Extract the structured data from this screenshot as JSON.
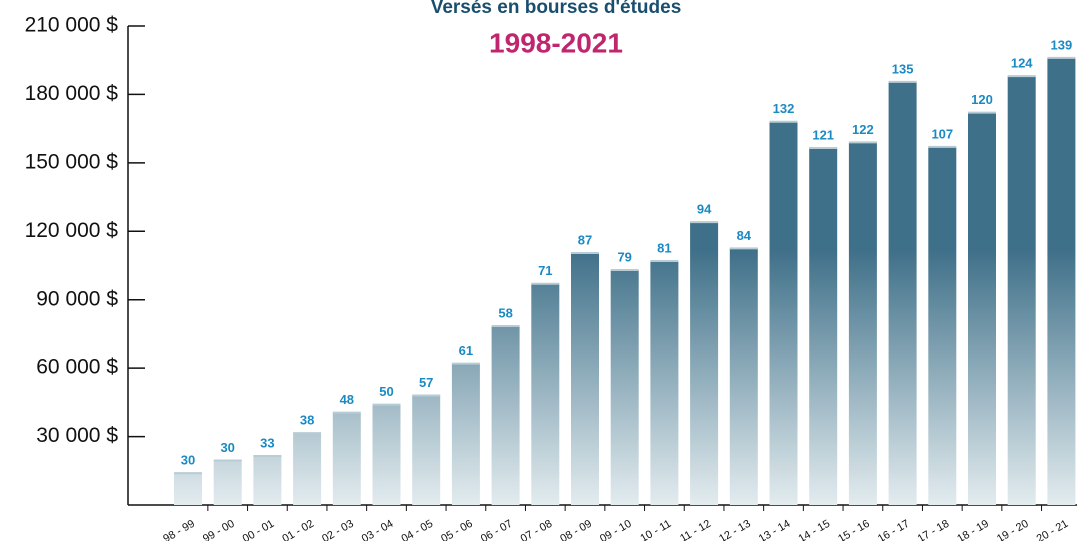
{
  "chart_data": {
    "type": "bar",
    "title": "Versés en bourses d'études",
    "subtitle": "1998-2021",
    "categories": [
      "98 - 99",
      "99 - 00",
      "00 - 01",
      "01 - 02",
      "02 - 03",
      "03 - 04",
      "04 - 05",
      "05 - 06",
      "06 - 07",
      "07 - 08",
      "08 - 09",
      "09 - 10",
      "10 - 11",
      "11 - 12",
      "12 - 13",
      "13 - 14",
      "14 - 15",
      "15 - 16",
      "16 - 17",
      "17 - 18",
      "18 - 19",
      "19 - 20",
      "20 - 21"
    ],
    "values": [
      14000,
      19500,
      21500,
      31500,
      40500,
      44000,
      48000,
      62000,
      78500,
      97000,
      110500,
      103000,
      107000,
      124000,
      112500,
      168000,
      156500,
      159000,
      185500,
      157000,
      172000,
      188000,
      196000
    ],
    "counts": [
      30,
      30,
      33,
      38,
      48,
      50,
      57,
      61,
      58,
      71,
      87,
      79,
      81,
      94,
      84,
      132,
      121,
      122,
      135,
      107,
      120,
      124,
      139
    ],
    "color_top": "#3f7089",
    "color_bottom": "#e3ecef",
    "ylim": [
      0,
      210000
    ],
    "yticks": [
      {
        "value": 30000,
        "label": "30 000 $"
      },
      {
        "value": 60000,
        "label": "60 000 $"
      },
      {
        "value": 90000,
        "label": "90 000 $"
      },
      {
        "value": 120000,
        "label": "120 000 $"
      },
      {
        "value": 150000,
        "label": "150 000 $"
      },
      {
        "value": 180000,
        "label": "180 000 $"
      },
      {
        "value": 210000,
        "label": "210 000 $"
      }
    ]
  }
}
